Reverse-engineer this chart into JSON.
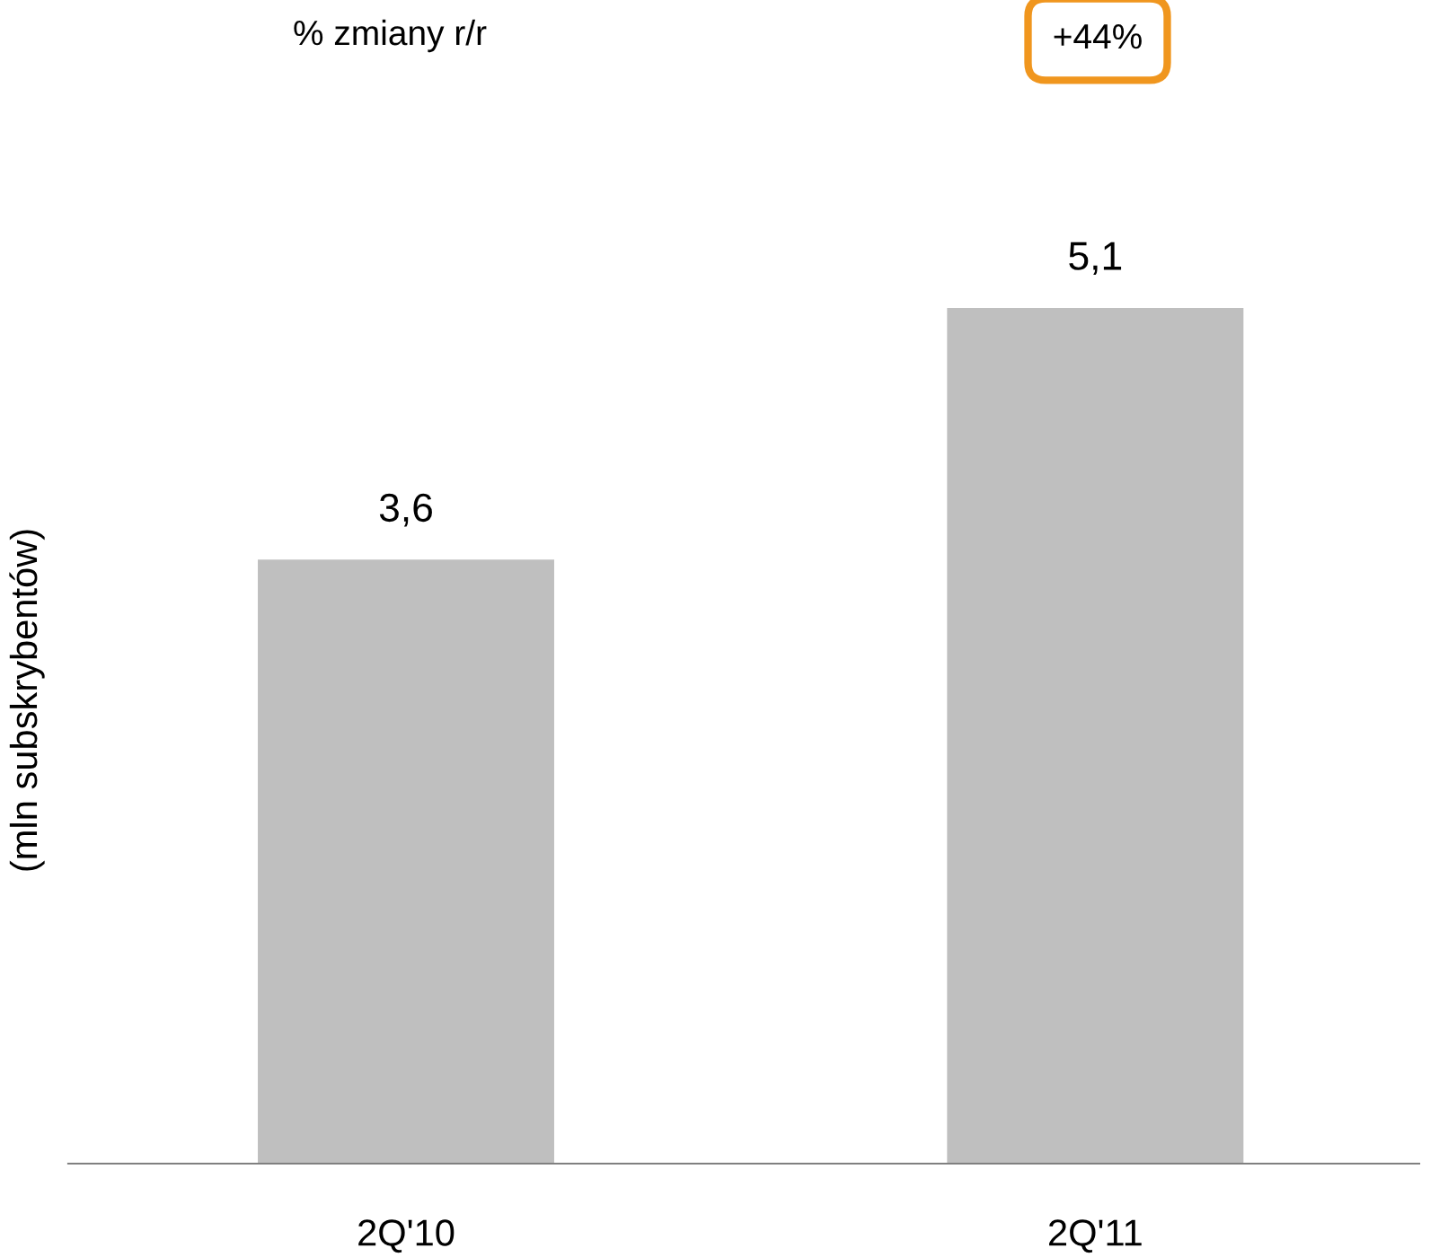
{
  "chart_data": {
    "type": "bar",
    "ylabel": "(mln subskrybentów)",
    "categories": [
      "2Q'10",
      "2Q'11"
    ],
    "values": [
      3.6,
      5.1
    ],
    "value_labels": [
      "3,6",
      "5,1"
    ],
    "color": "#bfbfbf",
    "grid": false,
    "legend": false,
    "annotations": [
      "% zmiany r/r",
      "+44%"
    ]
  }
}
